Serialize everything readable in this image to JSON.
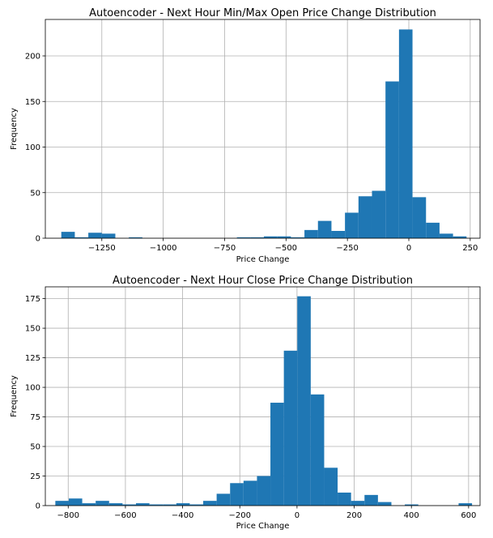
{
  "chart_data": [
    {
      "type": "bar",
      "title": "Autoencoder - Next Hour Min/Max Open Price Change Distribution",
      "xlabel": "Price Change",
      "ylabel": "Frequency",
      "xlim": [
        -1480,
        290
      ],
      "ylim": [
        0,
        240
      ],
      "xticks": [
        -1250,
        -1000,
        -750,
        -500,
        -250,
        0,
        250
      ],
      "xtick_labels": [
        "−1250",
        "−1000",
        "−750",
        "−500",
        "−250",
        "0",
        "250"
      ],
      "yticks": [
        0,
        50,
        100,
        150,
        200
      ],
      "ytick_labels": [
        "0",
        "50",
        "100",
        "150",
        "200"
      ],
      "grid": true,
      "color": "#1f77b4",
      "bins": [
        {
          "x0": -1415,
          "x1": -1360,
          "count": 7
        },
        {
          "x0": -1360,
          "x1": -1305,
          "count": 1
        },
        {
          "x0": -1305,
          "x1": -1250,
          "count": 6
        },
        {
          "x0": -1250,
          "x1": -1195,
          "count": 5
        },
        {
          "x0": -1195,
          "x1": -1140,
          "count": 0
        },
        {
          "x0": -1140,
          "x1": -1085,
          "count": 1
        },
        {
          "x0": -1085,
          "x1": -1030,
          "count": 0
        },
        {
          "x0": -1030,
          "x1": -975,
          "count": 0
        },
        {
          "x0": -975,
          "x1": -920,
          "count": 0
        },
        {
          "x0": -920,
          "x1": -865,
          "count": 0
        },
        {
          "x0": -865,
          "x1": -810,
          "count": 0
        },
        {
          "x0": -810,
          "x1": -755,
          "count": 0
        },
        {
          "x0": -755,
          "x1": -700,
          "count": 0
        },
        {
          "x0": -700,
          "x1": -645,
          "count": 1
        },
        {
          "x0": -645,
          "x1": -590,
          "count": 1
        },
        {
          "x0": -590,
          "x1": -535,
          "count": 2
        },
        {
          "x0": -535,
          "x1": -480,
          "count": 2
        },
        {
          "x0": -480,
          "x1": -425,
          "count": 1
        },
        {
          "x0": -425,
          "x1": -370,
          "count": 9
        },
        {
          "x0": -370,
          "x1": -315,
          "count": 19
        },
        {
          "x0": -315,
          "x1": -260,
          "count": 8
        },
        {
          "x0": -260,
          "x1": -205,
          "count": 28
        },
        {
          "x0": -205,
          "x1": -150,
          "count": 46
        },
        {
          "x0": -150,
          "x1": -95,
          "count": 52
        },
        {
          "x0": -95,
          "x1": -40,
          "count": 172
        },
        {
          "x0": -40,
          "x1": 15,
          "count": 229
        },
        {
          "x0": 15,
          "x1": 70,
          "count": 45
        },
        {
          "x0": 70,
          "x1": 125,
          "count": 17
        },
        {
          "x0": 125,
          "x1": 180,
          "count": 5
        },
        {
          "x0": 180,
          "x1": 235,
          "count": 2
        }
      ]
    },
    {
      "type": "bar",
      "title": "Autoencoder - Next Hour Close Price Change Distribution",
      "xlabel": "Price Change",
      "ylabel": "Frequency",
      "xlim": [
        -880,
        640
      ],
      "ylim": [
        0,
        185
      ],
      "xticks": [
        -800,
        -600,
        -400,
        -200,
        0,
        200,
        400,
        600
      ],
      "xtick_labels": [
        "−800",
        "−600",
        "−400",
        "−200",
        "0",
        "200",
        "400",
        "600"
      ],
      "yticks": [
        0,
        25,
        50,
        75,
        100,
        125,
        150,
        175
      ],
      "ytick_labels": [
        "0",
        "25",
        "50",
        "75",
        "100",
        "125",
        "150",
        "175"
      ],
      "grid": true,
      "color": "#1f77b4",
      "bins": [
        {
          "x0": -845,
          "x1": -798,
          "count": 4
        },
        {
          "x0": -798,
          "x1": -751,
          "count": 6
        },
        {
          "x0": -751,
          "x1": -704,
          "count": 2
        },
        {
          "x0": -704,
          "x1": -657,
          "count": 4
        },
        {
          "x0": -657,
          "x1": -610,
          "count": 2
        },
        {
          "x0": -610,
          "x1": -563,
          "count": 1
        },
        {
          "x0": -563,
          "x1": -516,
          "count": 2
        },
        {
          "x0": -516,
          "x1": -469,
          "count": 1
        },
        {
          "x0": -469,
          "x1": -422,
          "count": 1
        },
        {
          "x0": -422,
          "x1": -375,
          "count": 2
        },
        {
          "x0": -375,
          "x1": -328,
          "count": 1
        },
        {
          "x0": -328,
          "x1": -281,
          "count": 4
        },
        {
          "x0": -281,
          "x1": -234,
          "count": 10
        },
        {
          "x0": -234,
          "x1": -187,
          "count": 19
        },
        {
          "x0": -187,
          "x1": -140,
          "count": 21
        },
        {
          "x0": -140,
          "x1": -93,
          "count": 25
        },
        {
          "x0": -93,
          "x1": -46,
          "count": 87
        },
        {
          "x0": -46,
          "x1": 1,
          "count": 131
        },
        {
          "x0": 1,
          "x1": 48,
          "count": 177
        },
        {
          "x0": 48,
          "x1": 95,
          "count": 94
        },
        {
          "x0": 95,
          "x1": 142,
          "count": 32
        },
        {
          "x0": 142,
          "x1": 189,
          "count": 11
        },
        {
          "x0": 189,
          "x1": 236,
          "count": 4
        },
        {
          "x0": 236,
          "x1": 283,
          "count": 9
        },
        {
          "x0": 283,
          "x1": 330,
          "count": 3
        },
        {
          "x0": 330,
          "x1": 377,
          "count": 0
        },
        {
          "x0": 377,
          "x1": 424,
          "count": 1
        },
        {
          "x0": 424,
          "x1": 471,
          "count": 0
        },
        {
          "x0": 471,
          "x1": 518,
          "count": 0
        },
        {
          "x0": 518,
          "x1": 565,
          "count": 0
        },
        {
          "x0": 565,
          "x1": 612,
          "count": 2
        }
      ]
    }
  ]
}
